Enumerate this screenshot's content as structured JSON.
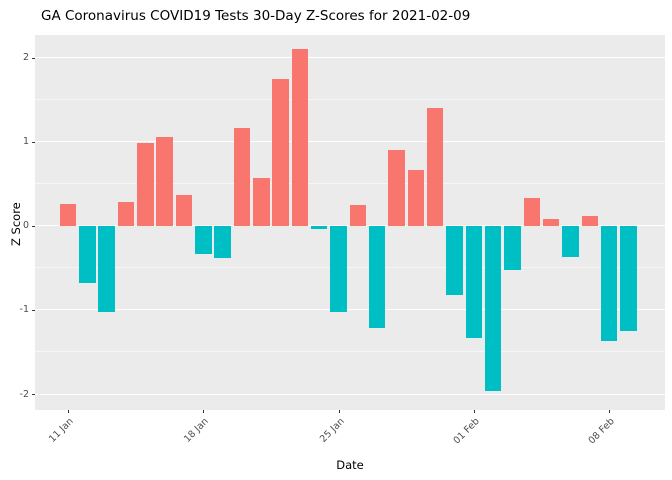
{
  "chart": {
    "title": "GA Coronavirus COVID19 Tests 30-Day Z-Scores for 2021-02-09",
    "xlabel": "Date",
    "ylabel": "Z Score"
  },
  "chart_data": {
    "type": "bar",
    "title": "GA Coronavirus COVID19 Tests 30-Day Z-Scores for 2021-02-09",
    "xlabel": "Date",
    "ylabel": "Z Score",
    "ylim": [
      -2.19,
      2.27
    ],
    "grid": true,
    "legend": "none",
    "y_major_ticks": [
      -2,
      -1,
      0,
      1,
      2
    ],
    "y_minor_ticks": [
      -1.5,
      -0.5,
      0.5,
      1.5
    ],
    "x_ticks": [
      {
        "index": 0,
        "label": "11 Jan"
      },
      {
        "index": 7,
        "label": "18 Jan"
      },
      {
        "index": 14,
        "label": "25 Jan"
      },
      {
        "index": 21,
        "label": "01 Feb"
      },
      {
        "index": 28,
        "label": "08 Feb"
      }
    ],
    "colors": {
      "positive": "#F8766D",
      "negative": "#00BFC4",
      "panel_bg": "#EBEBEB",
      "grid": "#FFFFFF",
      "tick_label": "#4D4D4D"
    },
    "categories": [
      "2021-01-11",
      "2021-01-12",
      "2021-01-13",
      "2021-01-14",
      "2021-01-15",
      "2021-01-16",
      "2021-01-17",
      "2021-01-18",
      "2021-01-19",
      "2021-01-20",
      "2021-01-21",
      "2021-01-22",
      "2021-01-23",
      "2021-01-24",
      "2021-01-25",
      "2021-01-26",
      "2021-01-27",
      "2021-01-28",
      "2021-01-29",
      "2021-01-30",
      "2021-01-31",
      "2021-02-01",
      "2021-02-02",
      "2021-02-03",
      "2021-02-04",
      "2021-02-05",
      "2021-02-06",
      "2021-02-07",
      "2021-02-08",
      "2021-02-09"
    ],
    "values": [
      0.26,
      -0.68,
      -1.02,
      0.28,
      0.98,
      1.06,
      0.37,
      -0.33,
      -0.38,
      1.16,
      0.57,
      1.75,
      2.1,
      -0.04,
      -1.02,
      0.25,
      -1.22,
      0.9,
      0.67,
      1.4,
      -0.82,
      -1.33,
      -1.97,
      -0.53,
      0.33,
      0.08,
      -0.37,
      0.12,
      -1.37,
      -1.25
    ]
  }
}
